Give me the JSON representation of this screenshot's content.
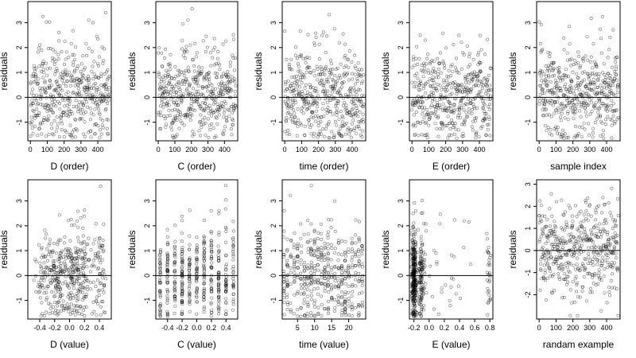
{
  "chart_data": [
    {
      "type": "scatter",
      "xlabel": "D (order)",
      "ylabel": "residuals",
      "xticks": [
        "0",
        "100",
        "200",
        "300",
        "400"
      ],
      "yticks": [
        "-1",
        "0",
        "1",
        "2",
        "3"
      ],
      "xlim": [
        -15,
        480
      ],
      "ylim": [
        -1.75,
        3.85
      ],
      "refline_y": 0,
      "n": 470,
      "x_kind": "index",
      "cluster": "none",
      "seed": 11
    },
    {
      "type": "scatter",
      "xlabel": "C (order)",
      "ylabel": "residuals",
      "xticks": [
        "0",
        "100",
        "200",
        "300",
        "400"
      ],
      "yticks": [
        "-1",
        "0",
        "1",
        "2",
        "3"
      ],
      "xlim": [
        -15,
        480
      ],
      "ylim": [
        -1.75,
        3.85
      ],
      "refline_y": 0,
      "n": 470,
      "x_kind": "index",
      "cluster": "none",
      "seed": 23
    },
    {
      "type": "scatter",
      "xlabel": "time (order)",
      "ylabel": "residuals",
      "xticks": [
        "0",
        "100",
        "200",
        "300",
        "400"
      ],
      "yticks": [
        "-1",
        "0",
        "1",
        "2",
        "3"
      ],
      "xlim": [
        -15,
        480
      ],
      "ylim": [
        -1.75,
        3.85
      ],
      "refline_y": 0,
      "n": 470,
      "x_kind": "index",
      "cluster": "none",
      "seed": 37
    },
    {
      "type": "scatter",
      "xlabel": "E (order)",
      "ylabel": "residuals",
      "xticks": [
        "0",
        "100",
        "200",
        "300",
        "400"
      ],
      "yticks": [
        "-1",
        "0",
        "1",
        "2",
        "3"
      ],
      "xlim": [
        -15,
        480
      ],
      "ylim": [
        -1.75,
        3.85
      ],
      "refline_y": 0,
      "n": 470,
      "x_kind": "index",
      "cluster": "none",
      "seed": 41
    },
    {
      "type": "scatter",
      "xlabel": "sample index",
      "ylabel": "residuals",
      "xticks": [
        "0",
        "100",
        "200",
        "300",
        "400"
      ],
      "yticks": [
        "-1",
        "0",
        "1",
        "2",
        "3"
      ],
      "xlim": [
        -15,
        480
      ],
      "ylim": [
        -1.75,
        3.85
      ],
      "refline_y": 0,
      "n": 470,
      "x_kind": "index",
      "cluster": "none",
      "seed": 53
    },
    {
      "type": "scatter",
      "xlabel": "D (value)",
      "ylabel": "residuals",
      "xticks": [
        "-0.4",
        "-0.2",
        "0.0",
        "0.2",
        "0.4"
      ],
      "yticks": [
        "-1",
        "0",
        "1",
        "2",
        "3"
      ],
      "xlim": [
        -0.56,
        0.56
      ],
      "ylim": [
        -1.75,
        3.85
      ],
      "refline_y": 0,
      "n": 470,
      "x_kind": "continuous",
      "cluster": "D",
      "seed": 61
    },
    {
      "type": "scatter",
      "xlabel": "C (value)",
      "ylabel": "residuals",
      "xticks": [
        "-0.4",
        "-0.2",
        "0.0",
        "0.2",
        "0.4"
      ],
      "yticks": [
        "-1",
        "0",
        "1",
        "2",
        "3"
      ],
      "xlim": [
        -0.56,
        0.56
      ],
      "ylim": [
        -1.75,
        3.85
      ],
      "refline_y": 0,
      "n": 470,
      "x_kind": "discrete",
      "levels": [
        -0.5,
        -0.4,
        -0.3,
        -0.2,
        -0.1,
        0.0,
        0.1,
        0.2,
        0.3,
        0.4,
        0.5
      ],
      "seed": 71
    },
    {
      "type": "scatter",
      "xlabel": "time (value)",
      "ylabel": "residuals",
      "xticks": [
        "5",
        "10",
        "15",
        "20"
      ],
      "yticks": [
        "-1",
        "0",
        "1",
        "2",
        "3"
      ],
      "xlim": [
        0.5,
        25
      ],
      "ylim": [
        -1.75,
        3.85
      ],
      "refline_y": 0,
      "n": 470,
      "x_kind": "discrete",
      "levels": [
        1,
        2,
        3,
        4,
        5,
        6,
        7,
        8,
        9,
        10,
        11,
        12,
        13,
        14,
        15,
        16,
        17,
        18,
        19,
        20,
        21,
        22,
        23,
        24
      ],
      "seed": 83
    },
    {
      "type": "scatter",
      "xlabel": "E (value)",
      "ylabel": "residuals",
      "xticks": [
        "-0.2",
        "0.0",
        "0.2",
        "0.4",
        "0.6",
        "0.8"
      ],
      "yticks": [
        "-1",
        "0",
        "1",
        "2",
        "3"
      ],
      "xlim": [
        -0.26,
        0.84
      ],
      "ylim": [
        -1.75,
        3.85
      ],
      "refline_y": 0,
      "n": 470,
      "x_kind": "continuous",
      "cluster": "E",
      "seed": 97
    },
    {
      "type": "scatter",
      "xlabel": "randam example",
      "ylabel": "residuals",
      "xticks": [
        "0",
        "100",
        "200",
        "300",
        "400"
      ],
      "yticks": [
        "-2",
        "-1",
        "0",
        "1",
        "2",
        "3"
      ],
      "xlim": [
        -15,
        480
      ],
      "ylim": [
        -3.1,
        3.2
      ],
      "refline_y": 0,
      "n": 470,
      "x_kind": "index",
      "cluster": "random",
      "seed": 103
    }
  ]
}
